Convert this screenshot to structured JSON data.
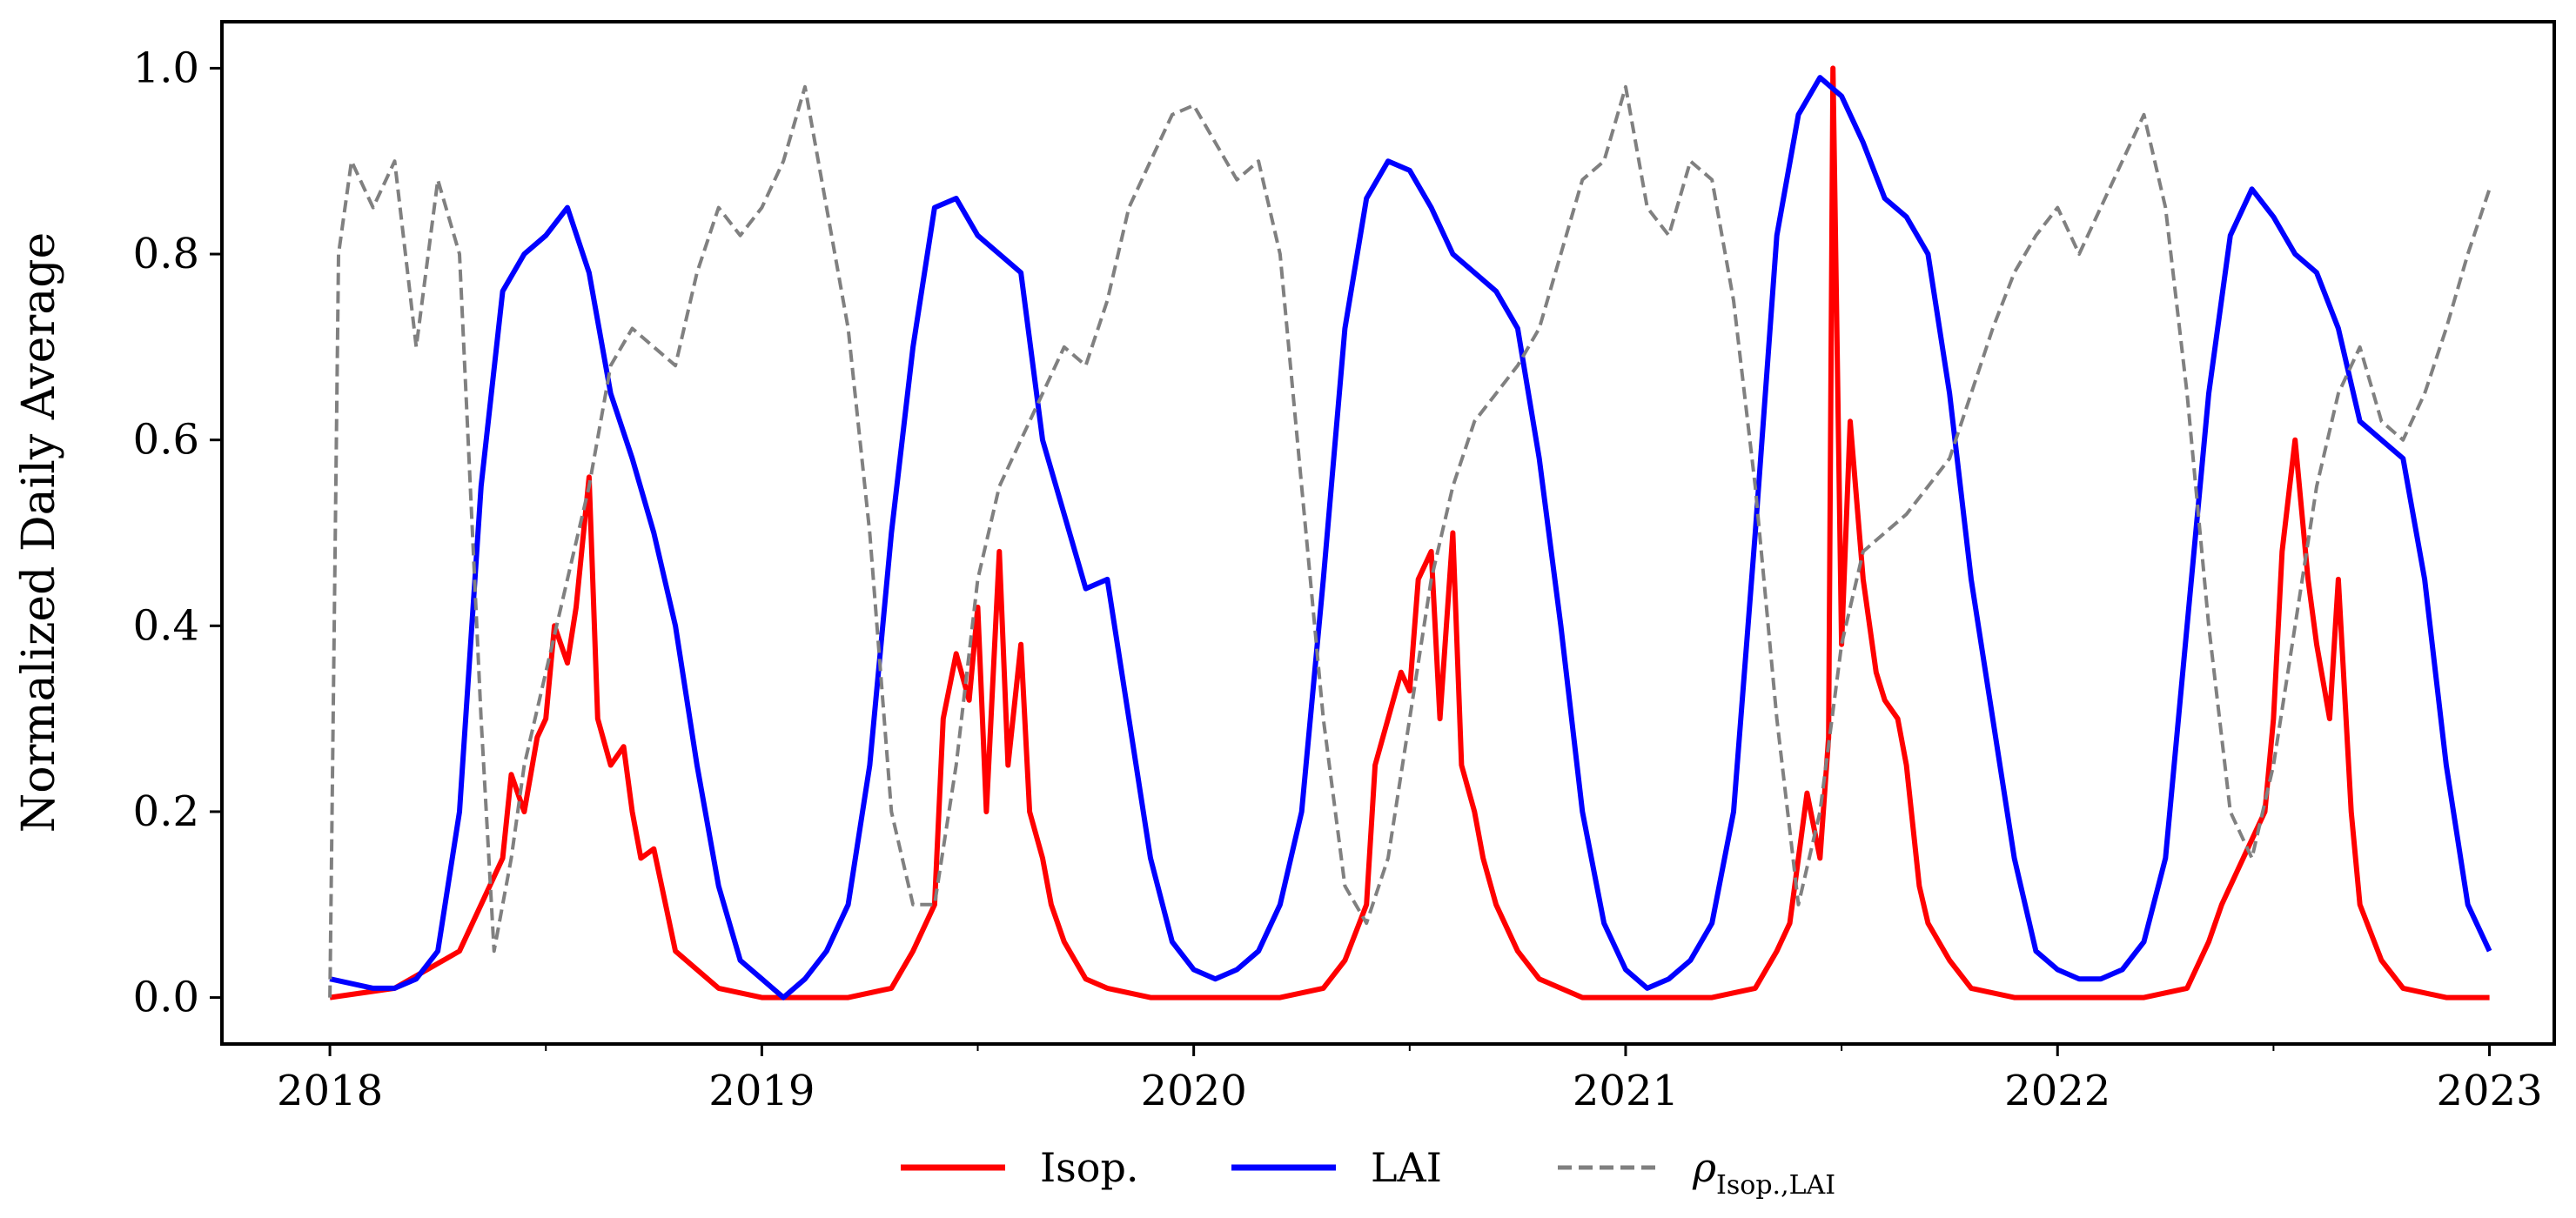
{
  "chart_data": {
    "type": "line",
    "title": "",
    "xlabel": "",
    "ylabel": "Normalized Daily Average",
    "xlim": [
      2017.75,
      2023.15
    ],
    "ylim": [
      -0.05,
      1.05
    ],
    "x_ticks": [
      2018,
      2019,
      2020,
      2021,
      2022,
      2023
    ],
    "x_tick_labels": [
      "2018",
      "2019",
      "2020",
      "2021",
      "2022",
      "2023"
    ],
    "y_ticks": [
      0.0,
      0.2,
      0.4,
      0.6,
      0.8,
      1.0
    ],
    "y_tick_labels": [
      "0.0",
      "0.2",
      "0.4",
      "0.6",
      "0.8",
      "1.0"
    ],
    "grid": false,
    "legend_position": "bottom-center",
    "series": [
      {
        "name": "Isop.",
        "color": "#ff0000",
        "style": "solid",
        "x": [
          2018.0,
          2018.15,
          2018.3,
          2018.35,
          2018.4,
          2018.42,
          2018.45,
          2018.48,
          2018.5,
          2018.52,
          2018.55,
          2018.57,
          2018.6,
          2018.62,
          2018.65,
          2018.68,
          2018.7,
          2018.72,
          2018.75,
          2018.8,
          2018.9,
          2019.0,
          2019.2,
          2019.3,
          2019.35,
          2019.4,
          2019.42,
          2019.45,
          2019.48,
          2019.5,
          2019.52,
          2019.55,
          2019.57,
          2019.6,
          2019.62,
          2019.65,
          2019.67,
          2019.7,
          2019.75,
          2019.8,
          2019.9,
          2020.0,
          2020.2,
          2020.3,
          2020.35,
          2020.4,
          2020.42,
          2020.45,
          2020.48,
          2020.5,
          2020.52,
          2020.55,
          2020.57,
          2020.6,
          2020.62,
          2020.65,
          2020.67,
          2020.7,
          2020.75,
          2020.8,
          2020.9,
          2021.0,
          2021.2,
          2021.3,
          2021.35,
          2021.38,
          2021.42,
          2021.45,
          2021.47,
          2021.48,
          2021.5,
          2021.52,
          2021.55,
          2021.58,
          2021.6,
          2021.63,
          2021.65,
          2021.68,
          2021.7,
          2021.75,
          2021.8,
          2021.9,
          2022.0,
          2022.2,
          2022.3,
          2022.35,
          2022.38,
          2022.42,
          2022.45,
          2022.48,
          2022.5,
          2022.52,
          2022.55,
          2022.58,
          2022.6,
          2022.63,
          2022.65,
          2022.68,
          2022.7,
          2022.75,
          2022.8,
          2022.9,
          2023.0
        ],
        "y": [
          0.0,
          0.01,
          0.05,
          0.1,
          0.15,
          0.24,
          0.2,
          0.28,
          0.3,
          0.4,
          0.36,
          0.42,
          0.56,
          0.3,
          0.25,
          0.27,
          0.2,
          0.15,
          0.16,
          0.05,
          0.01,
          0.0,
          0.0,
          0.01,
          0.05,
          0.1,
          0.3,
          0.37,
          0.32,
          0.42,
          0.2,
          0.48,
          0.25,
          0.38,
          0.2,
          0.15,
          0.1,
          0.06,
          0.02,
          0.01,
          0.0,
          0.0,
          0.0,
          0.01,
          0.04,
          0.1,
          0.25,
          0.3,
          0.35,
          0.33,
          0.45,
          0.48,
          0.3,
          0.5,
          0.25,
          0.2,
          0.15,
          0.1,
          0.05,
          0.02,
          0.0,
          0.0,
          0.0,
          0.01,
          0.05,
          0.08,
          0.22,
          0.15,
          0.28,
          1.0,
          0.38,
          0.62,
          0.45,
          0.35,
          0.32,
          0.3,
          0.25,
          0.12,
          0.08,
          0.04,
          0.01,
          0.0,
          0.0,
          0.0,
          0.01,
          0.06,
          0.1,
          0.14,
          0.17,
          0.2,
          0.3,
          0.48,
          0.6,
          0.45,
          0.38,
          0.3,
          0.45,
          0.2,
          0.1,
          0.04,
          0.01,
          0.0,
          0.0
        ]
      },
      {
        "name": "LAI",
        "color": "#0000ff",
        "style": "solid",
        "x": [
          2018.0,
          2018.1,
          2018.15,
          2018.2,
          2018.25,
          2018.3,
          2018.35,
          2018.4,
          2018.45,
          2018.5,
          2018.55,
          2018.6,
          2018.65,
          2018.7,
          2018.75,
          2018.8,
          2018.85,
          2018.9,
          2018.95,
          2019.0,
          2019.05,
          2019.1,
          2019.15,
          2019.2,
          2019.25,
          2019.3,
          2019.35,
          2019.4,
          2019.45,
          2019.5,
          2019.55,
          2019.6,
          2019.65,
          2019.7,
          2019.75,
          2019.8,
          2019.85,
          2019.9,
          2019.95,
          2020.0,
          2020.05,
          2020.1,
          2020.15,
          2020.2,
          2020.25,
          2020.3,
          2020.35,
          2020.4,
          2020.45,
          2020.5,
          2020.55,
          2020.6,
          2020.65,
          2020.7,
          2020.75,
          2020.8,
          2020.85,
          2020.9,
          2020.95,
          2021.0,
          2021.05,
          2021.1,
          2021.15,
          2021.2,
          2021.25,
          2021.3,
          2021.35,
          2021.4,
          2021.45,
          2021.5,
          2021.55,
          2021.6,
          2021.65,
          2021.7,
          2021.75,
          2021.8,
          2021.85,
          2021.9,
          2021.95,
          2022.0,
          2022.05,
          2022.1,
          2022.15,
          2022.2,
          2022.25,
          2022.3,
          2022.35,
          2022.4,
          2022.45,
          2022.5,
          2022.55,
          2022.6,
          2022.65,
          2022.7,
          2022.75,
          2022.8,
          2022.85,
          2022.9,
          2022.95,
          2023.0
        ],
        "y": [
          0.02,
          0.01,
          0.01,
          0.02,
          0.05,
          0.2,
          0.55,
          0.76,
          0.8,
          0.82,
          0.85,
          0.78,
          0.65,
          0.58,
          0.5,
          0.4,
          0.25,
          0.12,
          0.04,
          0.02,
          0.0,
          0.02,
          0.05,
          0.1,
          0.25,
          0.5,
          0.7,
          0.85,
          0.86,
          0.82,
          0.8,
          0.78,
          0.6,
          0.52,
          0.44,
          0.45,
          0.3,
          0.15,
          0.06,
          0.03,
          0.02,
          0.03,
          0.05,
          0.1,
          0.2,
          0.45,
          0.72,
          0.86,
          0.9,
          0.89,
          0.85,
          0.8,
          0.78,
          0.76,
          0.72,
          0.58,
          0.4,
          0.2,
          0.08,
          0.03,
          0.01,
          0.02,
          0.04,
          0.08,
          0.2,
          0.5,
          0.82,
          0.95,
          0.99,
          0.97,
          0.92,
          0.86,
          0.84,
          0.8,
          0.65,
          0.45,
          0.3,
          0.15,
          0.05,
          0.03,
          0.02,
          0.02,
          0.03,
          0.06,
          0.15,
          0.4,
          0.65,
          0.82,
          0.87,
          0.84,
          0.8,
          0.78,
          0.72,
          0.62,
          0.6,
          0.58,
          0.45,
          0.25,
          0.1,
          0.05
        ]
      },
      {
        "name": "ρ_{Isop.,LAI}",
        "color": "#808080",
        "style": "dashed",
        "x": [
          2018.0,
          2018.02,
          2018.05,
          2018.1,
          2018.15,
          2018.2,
          2018.25,
          2018.3,
          2018.35,
          2018.38,
          2018.42,
          2018.45,
          2018.5,
          2018.55,
          2018.6,
          2018.65,
          2018.7,
          2018.75,
          2018.8,
          2018.85,
          2018.9,
          2018.95,
          2019.0,
          2019.05,
          2019.1,
          2019.15,
          2019.2,
          2019.25,
          2019.3,
          2019.35,
          2019.4,
          2019.45,
          2019.5,
          2019.55,
          2019.6,
          2019.65,
          2019.7,
          2019.75,
          2019.8,
          2019.85,
          2019.9,
          2019.95,
          2020.0,
          2020.05,
          2020.1,
          2020.15,
          2020.2,
          2020.25,
          2020.3,
          2020.35,
          2020.4,
          2020.45,
          2020.5,
          2020.55,
          2020.6,
          2020.65,
          2020.7,
          2020.75,
          2020.8,
          2020.85,
          2020.9,
          2020.95,
          2021.0,
          2021.05,
          2021.1,
          2021.15,
          2021.2,
          2021.25,
          2021.3,
          2021.35,
          2021.4,
          2021.45,
          2021.5,
          2021.55,
          2021.6,
          2021.65,
          2021.7,
          2021.75,
          2021.8,
          2021.85,
          2021.9,
          2021.95,
          2022.0,
          2022.05,
          2022.1,
          2022.15,
          2022.2,
          2022.25,
          2022.3,
          2022.35,
          2022.4,
          2022.45,
          2022.5,
          2022.55,
          2022.6,
          2022.65,
          2022.7,
          2022.75,
          2022.8,
          2022.85,
          2022.9,
          2022.95,
          2023.0
        ],
        "y": [
          0.0,
          0.8,
          0.9,
          0.85,
          0.9,
          0.7,
          0.88,
          0.8,
          0.3,
          0.05,
          0.15,
          0.25,
          0.35,
          0.45,
          0.55,
          0.68,
          0.72,
          0.7,
          0.68,
          0.78,
          0.85,
          0.82,
          0.85,
          0.9,
          0.98,
          0.85,
          0.72,
          0.5,
          0.2,
          0.1,
          0.1,
          0.25,
          0.45,
          0.55,
          0.6,
          0.65,
          0.7,
          0.68,
          0.75,
          0.85,
          0.9,
          0.95,
          0.96,
          0.92,
          0.88,
          0.9,
          0.8,
          0.55,
          0.3,
          0.12,
          0.08,
          0.15,
          0.3,
          0.45,
          0.55,
          0.62,
          0.65,
          0.68,
          0.72,
          0.8,
          0.88,
          0.9,
          0.98,
          0.85,
          0.82,
          0.9,
          0.88,
          0.75,
          0.55,
          0.3,
          0.1,
          0.2,
          0.38,
          0.48,
          0.5,
          0.52,
          0.55,
          0.58,
          0.65,
          0.72,
          0.78,
          0.82,
          0.85,
          0.8,
          0.85,
          0.9,
          0.95,
          0.85,
          0.65,
          0.4,
          0.2,
          0.15,
          0.25,
          0.4,
          0.55,
          0.65,
          0.7,
          0.62,
          0.6,
          0.65,
          0.72,
          0.8,
          0.87
        ]
      }
    ]
  }
}
